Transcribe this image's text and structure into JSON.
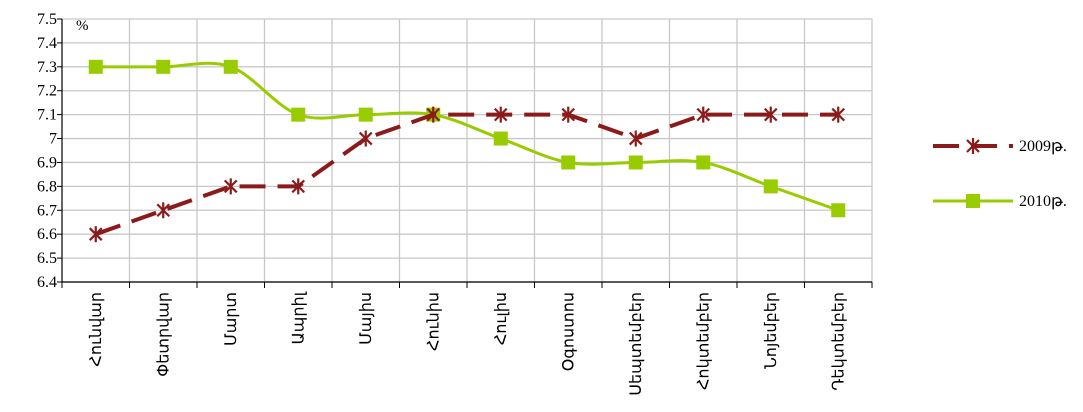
{
  "chart_data": {
    "type": "line",
    "title": "",
    "xlabel": "",
    "ylabel": "",
    "y_unit": "%",
    "categories": [
      "Հունվար",
      "Փետրվար",
      "Մարտ",
      "Ապրիլ",
      "Մայիս",
      "Հունիս",
      "Հուլիս",
      "Օգոստոս",
      "Սեպտեմբեր",
      "Հոկտեմբեր",
      "Նոյեմբեր",
      "Դեկտեմբեր"
    ],
    "ylim": [
      6.4,
      7.5
    ],
    "yticks": [
      "6.4",
      "6.5",
      "6.6",
      "6.7",
      "6.8",
      "6.9",
      "7",
      "7.1",
      "7.2",
      "7.3",
      "7.4",
      "7.5"
    ],
    "grid": true,
    "legend_position": "right",
    "series": [
      {
        "name": "2009թ.",
        "values": [
          6.6,
          6.7,
          6.8,
          6.8,
          7.0,
          7.1,
          7.1,
          7.1,
          7.0,
          7.1,
          7.1,
          7.1
        ],
        "color": "#8B1A1A",
        "style": "dashed",
        "marker": "asterisk"
      },
      {
        "name": "2010թ.",
        "values": [
          7.3,
          7.3,
          7.3,
          7.1,
          7.1,
          7.1,
          7.0,
          6.9,
          6.9,
          6.9,
          6.8,
          6.7
        ],
        "color": "#99CC00",
        "style": "smooth",
        "marker": "square"
      }
    ]
  }
}
